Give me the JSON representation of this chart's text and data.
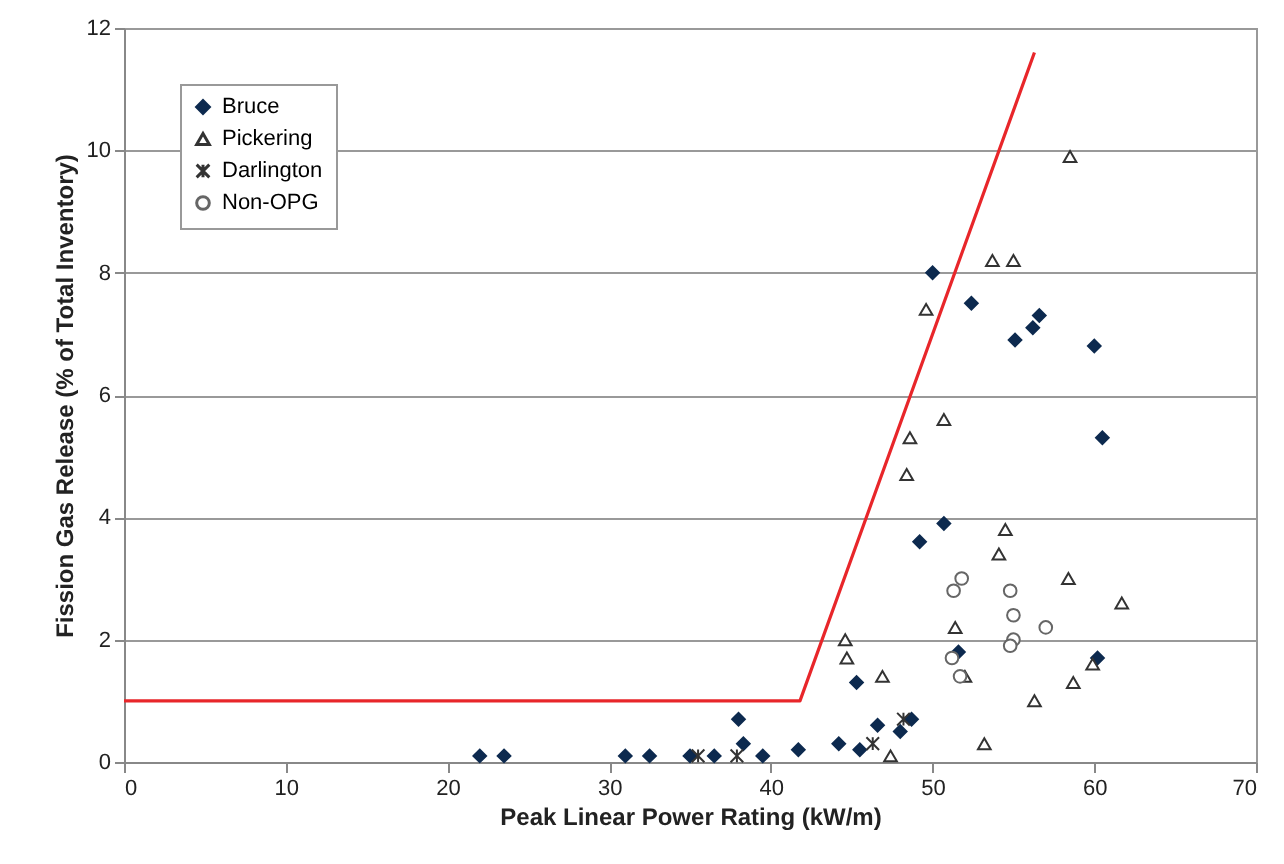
{
  "chart_data": {
    "type": "scatter",
    "xlabel": "Peak Linear Power Rating (kW/m)",
    "ylabel": "Fission Gas Release (% of Total Inventory)",
    "xlim": [
      0,
      70
    ],
    "ylim": [
      0,
      12
    ],
    "xticks": [
      0,
      10,
      20,
      30,
      40,
      50,
      60,
      70
    ],
    "yticks": [
      0,
      2,
      4,
      6,
      8,
      10,
      12
    ],
    "grid": "y",
    "legend": "top left",
    "series": [
      {
        "name": "Bruce",
        "color": "#0d2a4f",
        "marker": "diamond",
        "x": [
          22,
          23.5,
          31,
          32.5,
          35,
          36.5,
          38,
          38.3,
          39.5,
          41.7,
          44.2,
          45.3,
          45.5,
          46.6,
          48,
          48.7,
          49.2,
          50,
          50.7,
          51.6,
          52.4,
          55.1,
          56.2,
          56.6,
          60,
          60.2,
          60.5
        ],
        "values": [
          0.1,
          0.1,
          0.1,
          0.1,
          0.1,
          0.1,
          0.7,
          0.3,
          0.1,
          0.2,
          0.3,
          1.3,
          0.2,
          0.6,
          0.5,
          0.7,
          3.6,
          8.0,
          3.9,
          1.8,
          7.5,
          6.9,
          7.1,
          7.3,
          6.8,
          1.7,
          5.3
        ]
      },
      {
        "name": "Pickering",
        "color": "#333333",
        "marker": "triangle",
        "x": [
          58.5,
          53.7,
          55,
          49.6,
          50.7,
          48.6,
          48.4,
          54.5,
          54.1,
          58.4,
          61.7,
          44.6,
          44.7,
          46.9,
          51.4,
          52,
          59.9,
          58.7,
          56.3,
          53.2,
          47.4
        ],
        "values": [
          9.9,
          8.2,
          8.2,
          7.4,
          5.6,
          5.3,
          4.7,
          3.8,
          3.4,
          3.0,
          2.6,
          2.0,
          1.7,
          1.4,
          2.2,
          1.4,
          1.6,
          1.3,
          1.0,
          0.3,
          0.1
        ]
      },
      {
        "name": "Darlington",
        "color": "#333333",
        "marker": "cross",
        "x": [
          35.5,
          37.9,
          46.3,
          48.2
        ],
        "values": [
          0.1,
          0.1,
          0.3,
          0.7
        ]
      },
      {
        "name": "Non-OPG",
        "color": "#666666",
        "marker": "circle",
        "x": [
          51.8,
          51.3,
          54.8,
          55,
          57,
          55,
          54.8,
          51.2,
          51.7
        ],
        "values": [
          3.0,
          2.8,
          2.8,
          2.4,
          2.2,
          2.0,
          1.9,
          1.7,
          1.4
        ]
      },
      {
        "type": "line",
        "color": "#e8262a",
        "x": [
          0,
          41.8,
          56.3
        ],
        "values": [
          1,
          1,
          11.6
        ]
      }
    ]
  }
}
